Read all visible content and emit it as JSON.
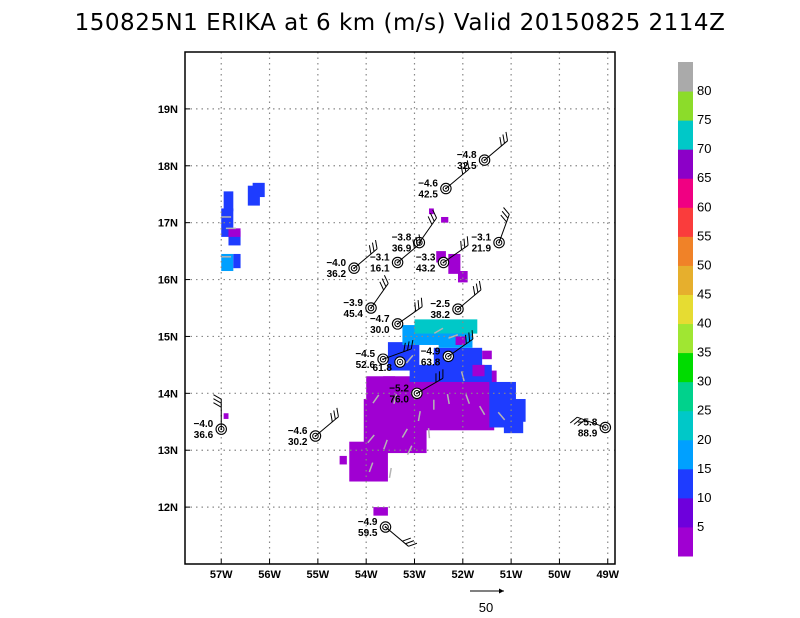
{
  "title": "150825N1 ERIKA at 6 km (m/s) Valid 20150825 2114Z",
  "map": {
    "lon_range": [
      -57.75,
      -48.85
    ],
    "lat_range": [
      11.0,
      20.0
    ],
    "lon_ticks": [
      -57,
      -56,
      -55,
      -54,
      -53,
      -52,
      -51,
      -50,
      -49
    ],
    "lat_ticks": [
      12,
      13,
      14,
      15,
      16,
      17,
      18,
      19
    ],
    "lon_labels": [
      "57W",
      "56W",
      "55W",
      "54W",
      "53W",
      "52W",
      "51W",
      "50W",
      "49W"
    ],
    "lat_labels": [
      "12N",
      "13N",
      "14N",
      "15N",
      "16N",
      "17N",
      "18N",
      "19N"
    ],
    "grid": true
  },
  "colorbar": {
    "labels": [
      "5",
      "10",
      "15",
      "20",
      "25",
      "30",
      "35",
      "40",
      "45",
      "50",
      "55",
      "60",
      "65",
      "70",
      "75",
      "80"
    ],
    "colors": [
      "#a000d2",
      "#6e00dc",
      "#1e3cff",
      "#00a0ff",
      "#00c8c8",
      "#00d28c",
      "#00dc00",
      "#a0e632",
      "#e6dc32",
      "#e6af2d",
      "#f08228",
      "#fa3c3c",
      "#f00082",
      "#8c00c8",
      "#00c8c8",
      "#8cdc2a",
      "#aaaaaa"
    ]
  },
  "reference_vector": {
    "label": "50"
  },
  "stations": [
    {
      "lon": -51.55,
      "lat": 18.1,
      "t": "−4.8",
      "v": "32.5"
    },
    {
      "lon": -52.35,
      "lat": 17.6,
      "t": "−4.6",
      "v": "42.5"
    },
    {
      "lon": -52.9,
      "lat": 16.65,
      "t": "−3.8",
      "v": "36.9"
    },
    {
      "lon": -51.25,
      "lat": 16.65,
      "t": "−3.1",
      "v": "21.9"
    },
    {
      "lon": -54.25,
      "lat": 16.2,
      "t": "−4.0",
      "v": "36.2"
    },
    {
      "lon": -53.35,
      "lat": 16.3,
      "t": "−3.1",
      "v": "16.1"
    },
    {
      "lon": -52.4,
      "lat": 16.3,
      "t": "−3.3",
      "v": "43.2"
    },
    {
      "lon": -53.9,
      "lat": 15.5,
      "t": "−3.9",
      "v": "45.4"
    },
    {
      "lon": -52.1,
      "lat": 15.48,
      "t": "−2.5",
      "v": "38.2"
    },
    {
      "lon": -53.35,
      "lat": 15.22,
      "t": "−4.7",
      "v": "30.0"
    },
    {
      "lon": -53.65,
      "lat": 14.6,
      "t": "−4.5",
      "v": "52.6"
    },
    {
      "lon": -53.3,
      "lat": 14.55,
      "t": "",
      "v": "61.8"
    },
    {
      "lon": -52.3,
      "lat": 14.65,
      "t": "−4.9",
      "v": "63.8"
    },
    {
      "lon": -52.95,
      "lat": 14.0,
      "t": "−5.2",
      "v": "76.0"
    },
    {
      "lon": -57.0,
      "lat": 13.37,
      "t": "−4.0",
      "v": "36.6"
    },
    {
      "lon": -55.05,
      "lat": 13.25,
      "t": "−4.6",
      "v": "30.2"
    },
    {
      "lon": -49.05,
      "lat": 13.4,
      "t": "−5.8",
      "v": "88.9"
    },
    {
      "lon": -53.6,
      "lat": 11.65,
      "t": "−4.9",
      "v": "59.5"
    }
  ]
}
